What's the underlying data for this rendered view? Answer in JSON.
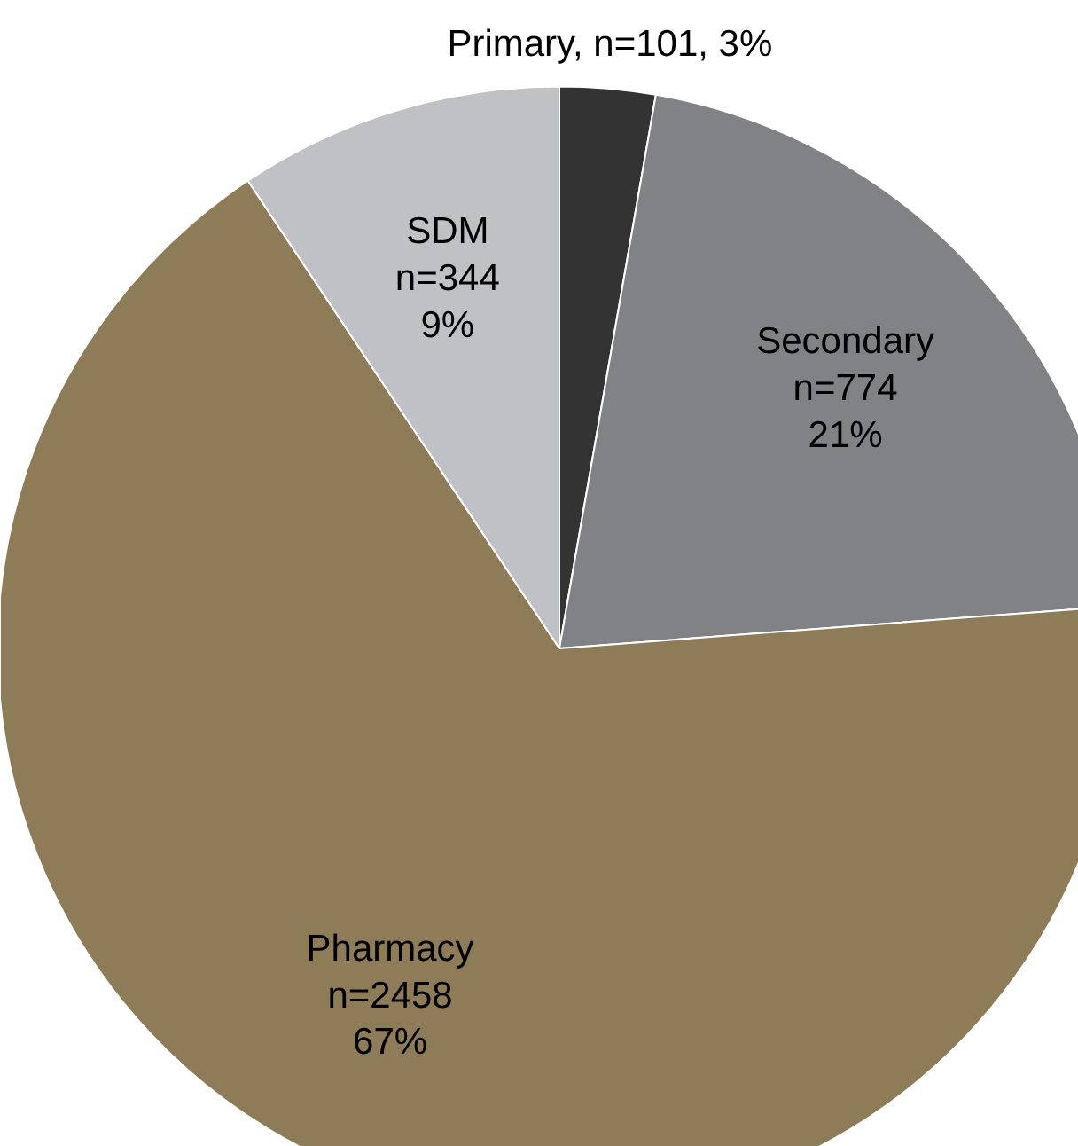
{
  "chart_data": {
    "type": "pie",
    "categories": [
      "Primary",
      "Secondary",
      "Pharmacy",
      "SDM"
    ],
    "values": [
      101,
      774,
      2458,
      344
    ],
    "colors": [
      "#333333",
      "#808285",
      "#8e7b58",
      "#c0c1c5"
    ],
    "value_labels": [
      "n=101, 3%",
      "n=774\n21%",
      "n=2458\n67%",
      "n=344\n9%"
    ]
  }
}
